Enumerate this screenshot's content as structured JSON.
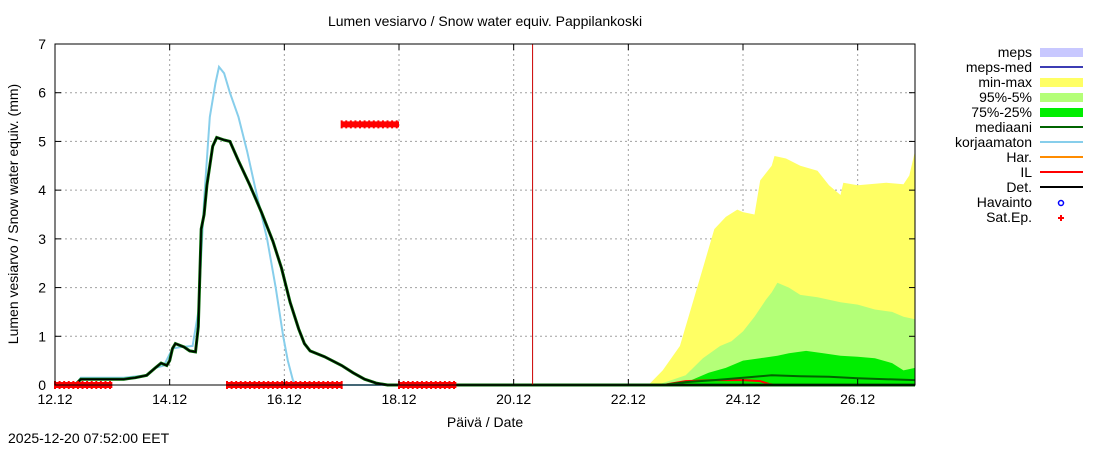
{
  "chart_data": {
    "type": "area",
    "title": "Lumen vesiarvo / Snow water equiv.  Pappilankoski",
    "xlabel": "Päivä / Date",
    "ylabel": "Lumen vesiarvo / Snow water equiv. (mm)",
    "ylim": [
      0,
      7
    ],
    "xlim": [
      0,
      15
    ],
    "xticks": [
      {
        "x": 0,
        "label": "12.12"
      },
      {
        "x": 2,
        "label": "14.12"
      },
      {
        "x": 4,
        "label": "16.12"
      },
      {
        "x": 6,
        "label": "18.12"
      },
      {
        "x": 8,
        "label": "20.12"
      },
      {
        "x": 10,
        "label": "22.12"
      },
      {
        "x": 12,
        "label": "24.12"
      },
      {
        "x": 14,
        "label": "26.12"
      }
    ],
    "yticks": [
      0,
      1,
      2,
      3,
      4,
      5,
      6,
      7
    ],
    "now_line_x": 8.33,
    "grid": true,
    "legend_position": "right",
    "legend": [
      {
        "name": "meps",
        "color": "#c8c8ff",
        "kind": "box"
      },
      {
        "name": "meps-med",
        "color": "#3c3cb4",
        "kind": "line"
      },
      {
        "name": "min-max",
        "color": "#ffff64",
        "kind": "box"
      },
      {
        "name": "95%-5%",
        "color": "#b4ff78",
        "kind": "box"
      },
      {
        "name": "75%-25%",
        "color": "#00ee00",
        "kind": "box"
      },
      {
        "name": "mediaani",
        "color": "#006400",
        "kind": "line"
      },
      {
        "name": "korjaamaton",
        "color": "#87ceeb",
        "kind": "line"
      },
      {
        "name": "Har.",
        "color": "#ff8c00",
        "kind": "line"
      },
      {
        "name": "IL",
        "color": "#ff0000",
        "kind": "line"
      },
      {
        "name": "Det.",
        "color": "#000000",
        "kind": "line"
      },
      {
        "name": "Havainto",
        "color": "#0000ff",
        "kind": "circle"
      },
      {
        "name": "Sat.Ep.",
        "color": "#ff0000",
        "kind": "plus"
      }
    ],
    "series": {
      "det": [
        [
          0,
          0
        ],
        [
          0.35,
          0
        ],
        [
          0.45,
          0.12
        ],
        [
          0.8,
          0.12
        ],
        [
          1.2,
          0.12
        ],
        [
          1.4,
          0.15
        ],
        [
          1.6,
          0.2
        ],
        [
          1.75,
          0.35
        ],
        [
          1.85,
          0.45
        ],
        [
          1.95,
          0.4
        ],
        [
          2.0,
          0.5
        ],
        [
          2.05,
          0.75
        ],
        [
          2.1,
          0.85
        ],
        [
          2.25,
          0.78
        ],
        [
          2.35,
          0.7
        ],
        [
          2.45,
          0.68
        ],
        [
          2.5,
          1.2
        ],
        [
          2.55,
          3.2
        ],
        [
          2.6,
          3.5
        ],
        [
          2.65,
          4.1
        ],
        [
          2.7,
          4.5
        ],
        [
          2.75,
          4.9
        ],
        [
          2.82,
          5.08
        ],
        [
          2.95,
          5.03
        ],
        [
          3.05,
          5.0
        ],
        [
          3.2,
          4.6
        ],
        [
          3.4,
          4.1
        ],
        [
          3.6,
          3.55
        ],
        [
          3.8,
          2.95
        ],
        [
          3.95,
          2.4
        ],
        [
          4.1,
          1.7
        ],
        [
          4.25,
          1.15
        ],
        [
          4.35,
          0.85
        ],
        [
          4.45,
          0.7
        ],
        [
          4.7,
          0.58
        ],
        [
          5.0,
          0.4
        ],
        [
          5.2,
          0.25
        ],
        [
          5.4,
          0.12
        ],
        [
          5.6,
          0.04
        ],
        [
          5.8,
          0
        ],
        [
          15,
          0
        ]
      ],
      "korjaamaton": [
        [
          0,
          0
        ],
        [
          0.35,
          0
        ],
        [
          0.45,
          0.15
        ],
        [
          0.8,
          0.15
        ],
        [
          1.2,
          0.15
        ],
        [
          1.6,
          0.2
        ],
        [
          1.75,
          0.35
        ],
        [
          1.9,
          0.4
        ],
        [
          2.05,
          0.75
        ],
        [
          2.2,
          0.78
        ],
        [
          2.4,
          0.8
        ],
        [
          2.5,
          1.5
        ],
        [
          2.6,
          3.8
        ],
        [
          2.7,
          5.5
        ],
        [
          2.8,
          6.2
        ],
        [
          2.86,
          6.53
        ],
        [
          2.95,
          6.4
        ],
        [
          3.05,
          6.0
        ],
        [
          3.2,
          5.5
        ],
        [
          3.35,
          4.8
        ],
        [
          3.5,
          4.0
        ],
        [
          3.7,
          3.0
        ],
        [
          3.85,
          2.0
        ],
        [
          3.98,
          1.0
        ],
        [
          4.06,
          0.5
        ],
        [
          4.15,
          0.1
        ],
        [
          4.2,
          0
        ],
        [
          15,
          0
        ]
      ],
      "minmax": [
        [
          10.35,
          0
        ],
        [
          10.6,
          0.3
        ],
        [
          10.9,
          0.8
        ],
        [
          11.1,
          1.6
        ],
        [
          11.3,
          2.4
        ],
        [
          11.5,
          3.2
        ],
        [
          11.7,
          3.45
        ],
        [
          11.9,
          3.6
        ],
        [
          12.0,
          3.55
        ],
        [
          12.2,
          3.5
        ],
        [
          12.3,
          4.2
        ],
        [
          12.5,
          4.5
        ],
        [
          12.55,
          4.7
        ],
        [
          12.75,
          4.65
        ],
        [
          13.0,
          4.5
        ],
        [
          13.3,
          4.4
        ],
        [
          13.5,
          4.1
        ],
        [
          13.7,
          3.9
        ],
        [
          13.75,
          4.15
        ],
        [
          14.0,
          4.1
        ],
        [
          14.5,
          4.15
        ],
        [
          14.8,
          4.12
        ],
        [
          14.9,
          4.3
        ],
        [
          15,
          4.8
        ]
      ],
      "p95_5": [
        [
          10.5,
          0
        ],
        [
          11.0,
          0.2
        ],
        [
          11.3,
          0.55
        ],
        [
          11.6,
          0.8
        ],
        [
          11.8,
          0.9
        ],
        [
          12.0,
          1.1
        ],
        [
          12.2,
          1.4
        ],
        [
          12.4,
          1.75
        ],
        [
          12.5,
          1.9
        ],
        [
          12.6,
          2.1
        ],
        [
          12.8,
          2.0
        ],
        [
          13.0,
          1.85
        ],
        [
          13.3,
          1.8
        ],
        [
          13.7,
          1.7
        ],
        [
          14.0,
          1.65
        ],
        [
          14.3,
          1.55
        ],
        [
          14.6,
          1.5
        ],
        [
          14.8,
          1.4
        ],
        [
          15,
          1.35
        ]
      ],
      "p75_25": [
        [
          10.8,
          0
        ],
        [
          11.1,
          0.1
        ],
        [
          11.4,
          0.25
        ],
        [
          11.7,
          0.35
        ],
        [
          12.0,
          0.5
        ],
        [
          12.3,
          0.55
        ],
        [
          12.6,
          0.6
        ],
        [
          12.8,
          0.65
        ],
        [
          13.1,
          0.7
        ],
        [
          13.4,
          0.65
        ],
        [
          13.7,
          0.6
        ],
        [
          14.0,
          0.58
        ],
        [
          14.3,
          0.55
        ],
        [
          14.6,
          0.45
        ],
        [
          14.8,
          0.3
        ],
        [
          15,
          0.35
        ]
      ],
      "mediaani": [
        [
          10.6,
          0
        ],
        [
          11.0,
          0.06
        ],
        [
          11.5,
          0.1
        ],
        [
          12.0,
          0.15
        ],
        [
          12.5,
          0.2
        ],
        [
          13.0,
          0.18
        ],
        [
          13.5,
          0.17
        ],
        [
          14.0,
          0.14
        ],
        [
          14.5,
          0.12
        ],
        [
          15,
          0.1
        ]
      ],
      "il": [
        [
          10.6,
          0
        ],
        [
          11.0,
          0.08
        ],
        [
          11.5,
          0.1
        ],
        [
          12.0,
          0.1
        ],
        [
          12.3,
          0.08
        ],
        [
          12.45,
          0.02
        ],
        [
          12.6,
          0
        ],
        [
          15,
          0
        ]
      ],
      "sat_ep": [
        {
          "from": 0,
          "to": 1.0,
          "y": 0
        },
        {
          "from": 3.0,
          "to": 5.0,
          "y": 0
        },
        {
          "from": 6.0,
          "to": 7.0,
          "y": 0
        },
        {
          "from": 5.0,
          "to": 6.0,
          "y": 5.35
        }
      ]
    }
  },
  "footer": {
    "timestamp": "2025-12-20 07:52:00 EET"
  }
}
